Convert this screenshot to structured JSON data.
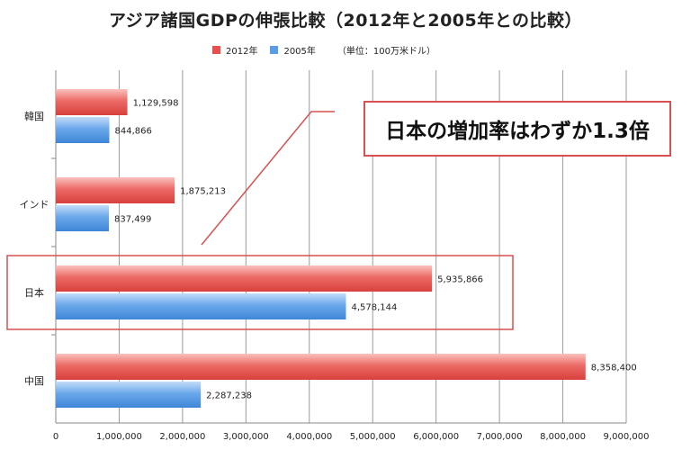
{
  "title": "アジア諸国GDPの伸張比較（2012年と2005年との比較）",
  "legend": {
    "series_2012": "2012年",
    "series_2005": "2005年",
    "unit": "（単位：100万米ドル）"
  },
  "callout": "日本の増加率はわずか1.3倍",
  "colors": {
    "series_2012": "#e8504e",
    "series_2005": "#5a9de6",
    "highlight": "#d85050",
    "grid": "#9a9a9a"
  },
  "chart_data": {
    "type": "bar",
    "orientation": "horizontal",
    "categories": [
      "韓国",
      "インド",
      "日本",
      "中国"
    ],
    "series": [
      {
        "name": "2012年",
        "values": [
          1129598,
          1875213,
          5935866,
          8358400
        ]
      },
      {
        "name": "2005年",
        "values": [
          844866,
          837499,
          4578144,
          2287238
        ]
      }
    ],
    "value_labels": [
      [
        "1,129,598",
        "1,875,213",
        "5,935,866",
        "8,358,400"
      ],
      [
        "844,866",
        "837,499",
        "4,578,144",
        "2,287,238"
      ]
    ],
    "xlim": [
      0,
      9000000
    ],
    "x_ticks": [
      0,
      1000000,
      2000000,
      3000000,
      4000000,
      5000000,
      6000000,
      7000000,
      8000000,
      9000000
    ],
    "x_tick_labels": [
      "0",
      "1,000,000",
      "2,000,000",
      "3,000,000",
      "4,000,000",
      "5,000,000",
      "6,000,000",
      "7,000,000",
      "8,000,000",
      "9,000,000"
    ],
    "grid": true,
    "highlighted_category": "日本"
  }
}
